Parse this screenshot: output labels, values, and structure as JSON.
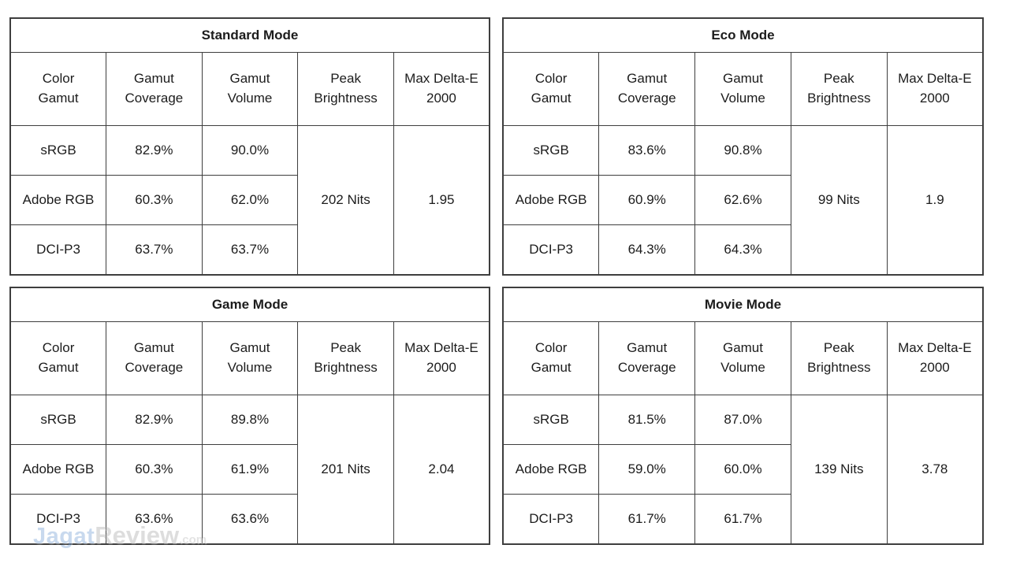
{
  "columns": [
    "Color\nGamut",
    "Gamut\nCoverage",
    "Gamut\nVolume",
    "Peak\nBrightness",
    "Max Delta-E\n2000"
  ],
  "chart_data": [
    {
      "type": "table",
      "title": "Standard Mode",
      "columns": [
        "Color Gamut",
        "Gamut Coverage",
        "Gamut Volume",
        "Peak Brightness",
        "Max Delta-E 2000"
      ],
      "rows": [
        [
          "sRGB",
          "82.9%",
          "90.0%"
        ],
        [
          "Adobe RGB",
          "60.3%",
          "62.0%"
        ],
        [
          "DCI-P3",
          "63.7%",
          "63.7%"
        ]
      ],
      "peak_brightness": "202 Nits",
      "max_delta_e_2000": "1.95"
    },
    {
      "type": "table",
      "title": "Eco Mode",
      "columns": [
        "Color Gamut",
        "Gamut Coverage",
        "Gamut Volume",
        "Peak Brightness",
        "Max Delta-E 2000"
      ],
      "rows": [
        [
          "sRGB",
          "83.6%",
          "90.8%"
        ],
        [
          "Adobe RGB",
          "60.9%",
          "62.6%"
        ],
        [
          "DCI-P3",
          "64.3%",
          "64.3%"
        ]
      ],
      "peak_brightness": "99 Nits",
      "max_delta_e_2000": "1.9"
    },
    {
      "type": "table",
      "title": "Game Mode",
      "columns": [
        "Color Gamut",
        "Gamut Coverage",
        "Gamut Volume",
        "Peak Brightness",
        "Max Delta-E 2000"
      ],
      "rows": [
        [
          "sRGB",
          "82.9%",
          "89.8%"
        ],
        [
          "Adobe RGB",
          "60.3%",
          "61.9%"
        ],
        [
          "DCI-P3",
          "63.6%",
          "63.6%"
        ]
      ],
      "peak_brightness": "201 Nits",
      "max_delta_e_2000": "2.04"
    },
    {
      "type": "table",
      "title": "Movie Mode",
      "columns": [
        "Color Gamut",
        "Gamut Coverage",
        "Gamut Volume",
        "Peak Brightness",
        "Max Delta-E 2000"
      ],
      "rows": [
        [
          "sRGB",
          "81.5%",
          "87.0%"
        ],
        [
          "Adobe RGB",
          "59.0%",
          "60.0%"
        ],
        [
          "DCI-P3",
          "61.7%",
          "61.7%"
        ]
      ],
      "peak_brightness": "139 Nits",
      "max_delta_e_2000": "3.78"
    }
  ],
  "watermark": {
    "jagat": "Jagat",
    "review": "Review",
    "dotcom": ".com"
  },
  "colors": {
    "border": "#3e3e3e",
    "text": "#1c1c1c",
    "background": "#ffffff",
    "watermark_blue": "#7ea7d8",
    "watermark_gray": "#b0b0b0"
  }
}
